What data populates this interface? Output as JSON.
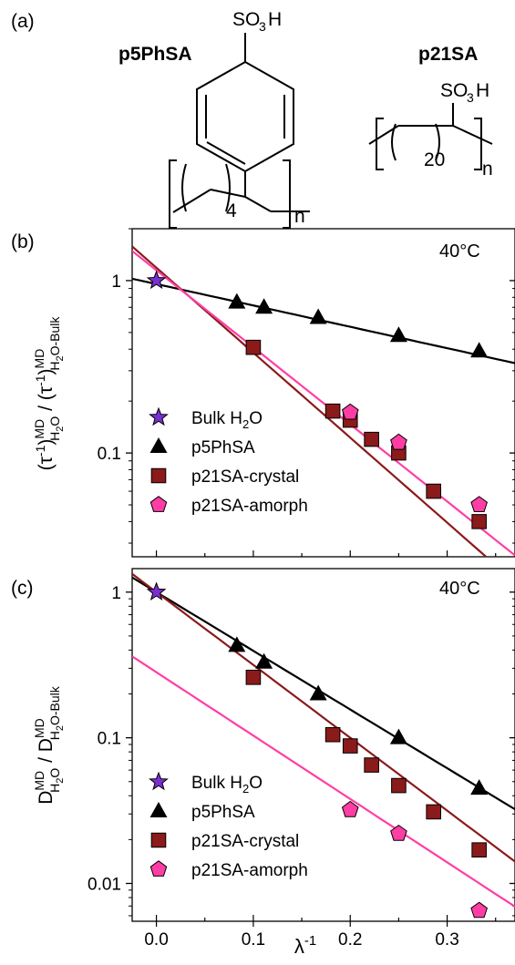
{
  "panels": {
    "a": "(a)",
    "b": "(b)",
    "c": "(c)"
  },
  "structures": {
    "left_name": "p5PhSA",
    "right_name": "p21SA",
    "sulfonic_group": "SO",
    "sulfonic_sub": "3",
    "sulfonic_tail": "H",
    "left_repeat": "4",
    "right_repeat": "20",
    "polymer_index": "n"
  },
  "colors": {
    "bulk": "#7b2fd0",
    "p5PhSA": "#000000",
    "crystal": "#8b1a1a",
    "amorph": "#ff3ea5"
  },
  "chart_data": [
    {
      "type": "scatter",
      "panel": "b",
      "annotation": "40°C",
      "ylabel": "(τ-1)MD H2O / (τ-1)MD H2O-Bulk",
      "xlim": [
        -0.025,
        0.37
      ],
      "ylim": [
        0.025,
        2.0
      ],
      "yscale": "log",
      "yticks": [
        {
          "value": 0.1,
          "label": "0.1"
        },
        {
          "value": 1,
          "label": "1"
        }
      ],
      "series": [
        {
          "name": "Bulk H2O",
          "marker": "star",
          "color": "#7b2fd0",
          "points": [
            [
              0.0,
              1.0
            ]
          ]
        },
        {
          "name": "p5PhSA",
          "marker": "triangle",
          "color": "#000000",
          "points": [
            [
              0.083,
              0.75
            ],
            [
              0.111,
              0.7
            ],
            [
              0.167,
              0.61
            ],
            [
              0.25,
              0.48
            ],
            [
              0.333,
              0.39
            ]
          ],
          "fit": {
            "slope_log10": -1.24,
            "intercept_log10": -0.02,
            "color": "#000000"
          }
        },
        {
          "name": "p21SA-crystal",
          "marker": "square",
          "color": "#8b1a1a",
          "points": [
            [
              0.1,
              0.41
            ],
            [
              0.182,
              0.175
            ],
            [
              0.2,
              0.155
            ],
            [
              0.222,
              0.12
            ],
            [
              0.25,
              0.1
            ],
            [
              0.286,
              0.06
            ],
            [
              0.333,
              0.04
            ]
          ],
          "fit": {
            "slope_log10": -4.93,
            "intercept_log10": 0.075,
            "color": "#8b1a1a"
          }
        },
        {
          "name": "p21SA-amorph",
          "marker": "pentagon",
          "color": "#ff3ea5",
          "points": [
            [
              0.2,
              0.172
            ],
            [
              0.25,
              0.115
            ],
            [
              0.333,
              0.05
            ]
          ],
          "fit": {
            "slope_log10": -4.47,
            "intercept_log10": 0.06,
            "color": "#ff3ea5"
          }
        }
      ]
    },
    {
      "type": "scatter",
      "panel": "c",
      "annotation": "40°C",
      "xlabel": "λ-1",
      "ylabel": "D MD H2O / D MD H2O-Bulk",
      "xlim": [
        -0.025,
        0.37
      ],
      "ylim": [
        0.0055,
        1.45
      ],
      "yscale": "log",
      "xticks": [
        {
          "value": 0.0,
          "label": "0.0"
        },
        {
          "value": 0.1,
          "label": "0.1"
        },
        {
          "value": 0.2,
          "label": "0.2"
        },
        {
          "value": 0.3,
          "label": "0.3"
        }
      ],
      "yticks": [
        {
          "value": 0.01,
          "label": "0.01"
        },
        {
          "value": 0.1,
          "label": "0.1"
        },
        {
          "value": 1,
          "label": "1"
        }
      ],
      "series": [
        {
          "name": "Bulk H2O",
          "marker": "star",
          "color": "#7b2fd0",
          "points": [
            [
              0.0,
              1.0
            ]
          ]
        },
        {
          "name": "p5PhSA",
          "marker": "triangle",
          "color": "#000000",
          "points": [
            [
              0.083,
              0.43
            ],
            [
              0.111,
              0.33
            ],
            [
              0.167,
              0.2
            ],
            [
              0.25,
              0.1
            ],
            [
              0.333,
              0.045
            ]
          ],
          "fit": {
            "slope_log10": -4.03,
            "intercept_log10": 0.0,
            "color": "#000000"
          }
        },
        {
          "name": "p21SA-crystal",
          "marker": "square",
          "color": "#8b1a1a",
          "points": [
            [
              0.1,
              0.26
            ],
            [
              0.182,
              0.105
            ],
            [
              0.2,
              0.088
            ],
            [
              0.222,
              0.065
            ],
            [
              0.25,
              0.047
            ],
            [
              0.286,
              0.031
            ],
            [
              0.333,
              0.017
            ]
          ],
          "fit": {
            "slope_log10": -5.0,
            "intercept_log10": 0.0,
            "color": "#8b1a1a"
          }
        },
        {
          "name": "p21SA-amorph",
          "marker": "pentagon",
          "color": "#ff3ea5",
          "points": [
            [
              0.2,
              0.032
            ],
            [
              0.25,
              0.022
            ],
            [
              0.333,
              0.0065
            ]
          ],
          "fit": {
            "slope_log10": -4.35,
            "intercept_log10": -0.55,
            "color": "#ff3ea5"
          }
        }
      ]
    }
  ]
}
